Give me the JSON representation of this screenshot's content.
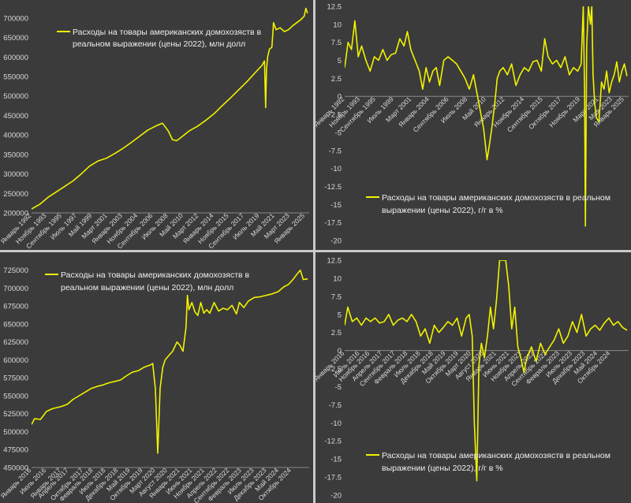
{
  "chart_data": [
    {
      "type": "line",
      "legend": [
        "Расходы на товары американских домохозяств в",
        "реальном выражении (цены 2022), млн долл"
      ],
      "line_color": "#f2f200",
      "ylim": [
        200000,
        730000
      ],
      "yticks": [
        200000,
        250000,
        300000,
        350000,
        400000,
        450000,
        500000,
        550000,
        600000,
        650000,
        700000
      ],
      "xlim": [
        1992.0,
        2025.5
      ],
      "xticks": [
        {
          "label": "Январь 1992",
          "x": 1992.0
        },
        {
          "label": "Ноябрь 1993",
          "x": 1993.83
        },
        {
          "label": "Сентябрь 1995",
          "x": 1995.67
        },
        {
          "label": "Июль 1997",
          "x": 1997.5
        },
        {
          "label": "Май 1999",
          "x": 1999.33
        },
        {
          "label": "Март 2001",
          "x": 2001.17
        },
        {
          "label": "Январь 2003",
          "x": 2003.0
        },
        {
          "label": "Ноябрь 2004",
          "x": 2004.83
        },
        {
          "label": "Сентябрь 2006",
          "x": 2006.67
        },
        {
          "label": "Июль 2008",
          "x": 2008.5
        },
        {
          "label": "Май 2010",
          "x": 2010.33
        },
        {
          "label": "Март 2012",
          "x": 2012.17
        },
        {
          "label": "Январь 2014",
          "x": 2014.0
        },
        {
          "label": "Ноябрь 2015",
          "x": 2015.83
        },
        {
          "label": "Сентябрь 2017",
          "x": 2017.67
        },
        {
          "label": "Июль 2019",
          "x": 2019.5
        },
        {
          "label": "Май 2021",
          "x": 2021.33
        },
        {
          "label": "Март 2023",
          "x": 2023.17
        },
        {
          "label": "Январь 2025",
          "x": 2025.0
        }
      ],
      "x": [
        1992.0,
        1993.0,
        1994.0,
        1995.0,
        1996.0,
        1997.0,
        1998.0,
        1999.0,
        2000.0,
        2001.0,
        2002.0,
        2003.0,
        2004.0,
        2005.0,
        2006.0,
        2007.0,
        2007.8,
        2008.5,
        2009.0,
        2009.5,
        2010.0,
        2011.0,
        2012.0,
        2013.0,
        2014.0,
        2015.0,
        2016.0,
        2017.0,
        2018.0,
        2019.0,
        2019.8,
        2020.1,
        2020.25,
        2020.35,
        2020.5,
        2020.7,
        2021.0,
        2021.2,
        2021.5,
        2022.0,
        2022.5,
        2023.0,
        2023.5,
        2024.0,
        2024.5,
        2024.9,
        2025.1,
        2025.3
      ],
      "y": [
        210000,
        222000,
        240000,
        254000,
        268000,
        282000,
        300000,
        320000,
        333000,
        340000,
        352000,
        365000,
        380000,
        396000,
        412000,
        423000,
        430000,
        410000,
        388000,
        385000,
        393000,
        410000,
        422000,
        437000,
        454000,
        475000,
        495000,
        516000,
        537000,
        560000,
        578000,
        590000,
        470000,
        570000,
        602000,
        620000,
        625000,
        688000,
        670000,
        675000,
        665000,
        670000,
        680000,
        688000,
        696000,
        705000,
        725000,
        712000
      ]
    },
    {
      "type": "line",
      "legend": [
        "Расходы на товары американских домохозяств в реальном",
        "выражении (цены 2022), г/г в %"
      ],
      "line_color": "#f2f200",
      "ylim": [
        -20,
        12.5
      ],
      "yticks": [
        -20,
        -17.5,
        -15,
        -12.5,
        -10,
        -7.5,
        -5,
        -2.5,
        0,
        2.5,
        5,
        7.5,
        10,
        12.5
      ],
      "xlim": [
        1992.0,
        2025.5
      ],
      "xticks": [
        {
          "label": "Январь 1992",
          "x": 1992.0
        },
        {
          "label": "Ноябрь 1993",
          "x": 1993.83
        },
        {
          "label": "Сентябрь 1995",
          "x": 1995.67
        },
        {
          "label": "Июль 1999",
          "x": 1997.8
        },
        {
          "label": "Март 2001",
          "x": 1999.9
        },
        {
          "label": "Январь 2004",
          "x": 2002.0
        },
        {
          "label": "Сентябрь 2006",
          "x": 2004.3
        },
        {
          "label": "Июль 2008",
          "x": 2006.5
        },
        {
          "label": "Май 2010",
          "x": 2008.7
        },
        {
          "label": "Январь 2012",
          "x": 2010.9
        },
        {
          "label": "Ноябрь 2014",
          "x": 2013.2
        },
        {
          "label": "Сентябрь 2015",
          "x": 2015.4
        },
        {
          "label": "Октябрь 2017",
          "x": 2017.6
        },
        {
          "label": "Ноябрь 2019",
          "x": 2019.8
        },
        {
          "label": "Март 2021",
          "x": 2022.0
        },
        {
          "label": "Мая 2023",
          "x": 2023.6
        },
        {
          "label": "Январь 2025",
          "x": 2025.0
        }
      ],
      "x": [
        1992.0,
        1992.4,
        1992.8,
        1993.2,
        1993.6,
        1994.0,
        1994.5,
        1995.0,
        1995.5,
        1996.0,
        1996.5,
        1997.0,
        1997.5,
        1998.0,
        1998.5,
        1999.0,
        1999.4,
        1999.8,
        2000.3,
        2000.8,
        2001.2,
        2001.6,
        2002.0,
        2002.4,
        2002.8,
        2003.2,
        2003.7,
        2004.2,
        2004.7,
        2005.2,
        2005.7,
        2006.2,
        2006.7,
        2007.2,
        2007.6,
        2008.0,
        2008.4,
        2008.8,
        2009.1,
        2009.4,
        2009.7,
        2010.0,
        2010.3,
        2010.7,
        2011.2,
        2011.7,
        2012.2,
        2012.7,
        2013.2,
        2013.7,
        2014.2,
        2014.7,
        2015.2,
        2015.6,
        2016.0,
        2016.5,
        2017.0,
        2017.5,
        2018.0,
        2018.5,
        2019.0,
        2019.5,
        2019.9,
        2020.15,
        2020.3,
        2020.4,
        2020.55,
        2020.75,
        2021.0,
        2021.15,
        2021.3,
        2021.5,
        2021.7,
        2022.0,
        2022.3,
        2022.6,
        2022.9,
        2023.2,
        2023.5,
        2023.8,
        2024.1,
        2024.4,
        2024.7,
        2025.0,
        2025.3
      ],
      "y": [
        4.0,
        7.5,
        6.5,
        10.5,
        5.5,
        7.0,
        5.0,
        3.5,
        5.5,
        5.0,
        6.5,
        5.0,
        5.8,
        6.0,
        8.0,
        7.0,
        9.0,
        6.5,
        5.0,
        3.5,
        1.0,
        4.0,
        2.0,
        3.5,
        4.0,
        1.5,
        5.0,
        5.5,
        5.0,
        4.5,
        3.5,
        2.5,
        1.0,
        3.0,
        0.5,
        -2.0,
        -4.5,
        -8.8,
        -6.5,
        -4.0,
        -1.0,
        2.5,
        3.5,
        4.0,
        3.0,
        4.5,
        1.5,
        3.0,
        4.0,
        3.5,
        4.8,
        5.0,
        3.5,
        8.0,
        5.5,
        4.5,
        5.0,
        4.0,
        5.5,
        3.0,
        4.0,
        3.5,
        4.5,
        12.5,
        1.0,
        -18.0,
        7.0,
        12.5,
        10.0,
        12.5,
        3.0,
        -1.0,
        -3.0,
        -3.5,
        2.0,
        1.0,
        3.5,
        0.5,
        2.0,
        3.0,
        4.8,
        2.0,
        3.5,
        4.5,
        2.8
      ]
    },
    {
      "type": "line",
      "legend": [
        "Расходы на товары американских домохозяств в",
        "реальном выражении (цены 2022), млн долл"
      ],
      "line_color": "#f2f200",
      "ylim": [
        450000,
        728000
      ],
      "yticks": [
        450000,
        475000,
        500000,
        525000,
        550000,
        575000,
        600000,
        625000,
        650000,
        675000,
        700000,
        725000
      ],
      "xlim": [
        2016.0,
        2025.35
      ],
      "xticks": [
        {
          "label": "Январь 2016",
          "x": 2016.0
        },
        {
          "label": "Июль 2016",
          "x": 2016.5
        },
        {
          "label": "Январь 2017",
          "x": 2017.0
        },
        {
          "label": "Апрель 2017",
          "x": 2017.25
        },
        {
          "label": "Октябрь 2017",
          "x": 2017.75
        },
        {
          "label": "Февраль 2018",
          "x": 2018.08
        },
        {
          "label": "Июль 2018",
          "x": 2018.5
        },
        {
          "label": "Декабрь 2018",
          "x": 2018.92
        },
        {
          "label": "Май 2019",
          "x": 2019.33
        },
        {
          "label": "Октябрь 2019",
          "x": 2019.75
        },
        {
          "label": "Март 2020",
          "x": 2020.17
        },
        {
          "label": "Август 2020",
          "x": 2020.58
        },
        {
          "label": "Январь 2021",
          "x": 2021.0
        },
        {
          "label": "Июнь 2021",
          "x": 2021.42
        },
        {
          "label": "Ноябрь 2021",
          "x": 2021.83
        },
        {
          "label": "Апрель 2022",
          "x": 2022.25
        },
        {
          "label": "Сентябрь 2022",
          "x": 2022.67
        },
        {
          "label": "Февраль 2023",
          "x": 2023.08
        },
        {
          "label": "Июль 2023",
          "x": 2023.5
        },
        {
          "label": "Декабрь 2023",
          "x": 2023.92
        },
        {
          "label": "Май 2024",
          "x": 2024.33
        },
        {
          "label": "Октябрь 2024",
          "x": 2024.75
        }
      ],
      "x": [
        2016.0,
        2016.1,
        2016.3,
        2016.5,
        2016.7,
        2017.0,
        2017.2,
        2017.4,
        2017.6,
        2017.8,
        2018.0,
        2018.2,
        2018.4,
        2018.6,
        2018.8,
        2019.0,
        2019.2,
        2019.4,
        2019.6,
        2019.8,
        2020.0,
        2020.08,
        2020.17,
        2020.25,
        2020.33,
        2020.42,
        2020.5,
        2020.6,
        2020.75,
        2020.9,
        2021.0,
        2021.1,
        2021.2,
        2021.25,
        2021.3,
        2021.4,
        2021.5,
        2021.6,
        2021.7,
        2021.8,
        2021.9,
        2022.0,
        2022.15,
        2022.3,
        2022.45,
        2022.6,
        2022.75,
        2022.9,
        2023.0,
        2023.15,
        2023.3,
        2023.5,
        2023.7,
        2023.9,
        2024.1,
        2024.3,
        2024.5,
        2024.65,
        2024.8,
        2024.95,
        2025.05,
        2025.15,
        2025.3
      ],
      "y": [
        510000,
        518000,
        517000,
        528000,
        532000,
        535000,
        538000,
        545000,
        550000,
        555000,
        560000,
        563000,
        565000,
        568000,
        570000,
        572000,
        578000,
        583000,
        585000,
        590000,
        593000,
        595000,
        560000,
        470000,
        560000,
        590000,
        600000,
        605000,
        612000,
        625000,
        620000,
        612000,
        645000,
        690000,
        670000,
        680000,
        667000,
        662000,
        680000,
        665000,
        670000,
        665000,
        680000,
        668000,
        672000,
        670000,
        676000,
        664000,
        680000,
        673000,
        682000,
        687000,
        688000,
        690000,
        692000,
        695000,
        702000,
        705000,
        712000,
        720000,
        725000,
        712000,
        713000
      ]
    },
    {
      "type": "line",
      "legend": [
        "Расходы на товары американских домохозяств в реальном",
        "выражении (цены 2022), г/г в %"
      ],
      "line_color": "#f2f200",
      "ylim": [
        -20,
        12.5
      ],
      "yticks": [
        -20,
        -17.5,
        -15,
        -12.5,
        -10,
        -7.5,
        -5,
        -2.5,
        0,
        2.5,
        5,
        7.5,
        10,
        12.5
      ],
      "xlim": [
        2016.0,
        2025.35
      ],
      "xticks": [
        {
          "label": "Январь 2016",
          "x": 2016.0
        },
        {
          "label": "Июль 2016",
          "x": 2016.5
        },
        {
          "label": "Ноябрь 2016",
          "x": 2016.83
        },
        {
          "label": "Апрель 2017",
          "x": 2017.25
        },
        {
          "label": "Сентябрь 2017",
          "x": 2017.67
        },
        {
          "label": "Февраль 2018",
          "x": 2018.08
        },
        {
          "label": "Июль 2018",
          "x": 2018.5
        },
        {
          "label": "Декабрь 2018",
          "x": 2018.92
        },
        {
          "label": "Май 2019",
          "x": 2019.33
        },
        {
          "label": "Октябрь 2019",
          "x": 2019.75
        },
        {
          "label": "Март 2020",
          "x": 2020.17
        },
        {
          "label": "Август 2020",
          "x": 2020.58
        },
        {
          "label": "Январь 2021",
          "x": 2021.0
        },
        {
          "label": "Июнь 2021",
          "x": 2021.42
        },
        {
          "label": "Ноябрь 2021",
          "x": 2021.83
        },
        {
          "label": "Апрель 2022",
          "x": 2022.25
        },
        {
          "label": "Сентябрь 2022",
          "x": 2022.67
        },
        {
          "label": "Февраль 2023",
          "x": 2023.08
        },
        {
          "label": "Июль 2023",
          "x": 2023.5
        },
        {
          "label": "Декабрь 2023",
          "x": 2023.92
        },
        {
          "label": "Май 2024",
          "x": 2024.33
        },
        {
          "label": "Октябрь 2024",
          "x": 2024.75
        }
      ],
      "x": [
        2016.0,
        2016.1,
        2016.25,
        2016.4,
        2016.55,
        2016.7,
        2016.85,
        2017.0,
        2017.15,
        2017.3,
        2017.45,
        2017.6,
        2017.75,
        2017.9,
        2018.05,
        2018.2,
        2018.35,
        2018.5,
        2018.65,
        2018.8,
        2018.95,
        2019.1,
        2019.25,
        2019.4,
        2019.55,
        2019.7,
        2019.85,
        2020.0,
        2020.1,
        2020.2,
        2020.27,
        2020.35,
        2020.42,
        2020.5,
        2020.6,
        2020.7,
        2020.8,
        2020.9,
        2021.0,
        2021.1,
        2021.2,
        2021.3,
        2021.4,
        2021.5,
        2021.6,
        2021.7,
        2021.8,
        2021.9,
        2022.0,
        2022.15,
        2022.3,
        2022.45,
        2022.6,
        2022.75,
        2022.9,
        2023.05,
        2023.2,
        2023.35,
        2023.5,
        2023.65,
        2023.8,
        2023.95,
        2024.1,
        2024.25,
        2024.4,
        2024.55,
        2024.7,
        2024.85,
        2025.0,
        2025.15,
        2025.3
      ],
      "y": [
        3.5,
        6.0,
        4.0,
        4.5,
        3.5,
        4.5,
        4.0,
        4.5,
        3.8,
        4.0,
        5.0,
        3.5,
        4.2,
        4.5,
        4.0,
        5.0,
        4.0,
        2.0,
        3.0,
        1.0,
        3.5,
        2.5,
        3.2,
        4.0,
        3.5,
        4.5,
        2.0,
        4.5,
        5.0,
        2.0,
        -10.0,
        -18.0,
        -2.0,
        1.0,
        -1.0,
        2.0,
        6.0,
        3.0,
        7.0,
        12.5,
        12.5,
        12.5,
        9.0,
        3.0,
        6.0,
        0.5,
        -1.0,
        -3.0,
        -1.0,
        0.5,
        -1.5,
        1.0,
        -0.5,
        0.5,
        1.5,
        3.0,
        1.0,
        2.0,
        4.0,
        2.5,
        5.0,
        2.0,
        3.0,
        3.5,
        2.8,
        3.8,
        4.5,
        3.5,
        4.0,
        3.2,
        2.8
      ]
    }
  ]
}
